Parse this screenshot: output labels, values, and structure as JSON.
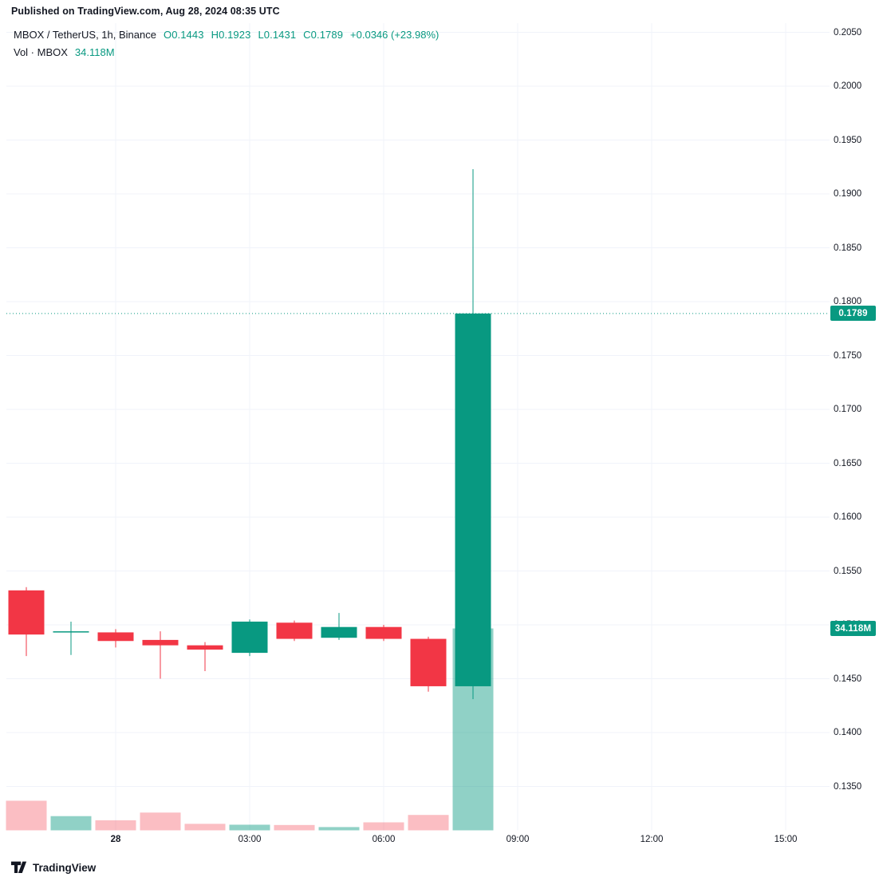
{
  "published_bar": {
    "text": "Published on TradingView.com, Aug 28, 2024 08:35 UTC"
  },
  "legend": {
    "symbol_title": "MBOX / TetherUS, 1h, Binance",
    "open_label": "O",
    "open_value": "0.1443",
    "high_label": "H",
    "high_value": "0.1923",
    "low_label": "L",
    "low_value": "0.1431",
    "close_label": "C",
    "close_value": "0.1789",
    "change_text": "+0.0346 (+23.98%)",
    "volume_label": "Vol · MBOX",
    "volume_value": "34.118M"
  },
  "price_axis": {
    "last_price_badge": "0.1789",
    "volume_badge": "34.118M"
  },
  "footer": {
    "brand": "TradingView"
  },
  "colors": {
    "up": "#089981",
    "down": "#f23645",
    "up_volume": "rgba(8,153,129,0.45)",
    "down_volume": "rgba(242,54,69,0.32)",
    "grid": "#f0f3fa",
    "axis_text": "#131722",
    "badge_text": "#ffffff"
  },
  "chart_data": {
    "type": "candlestick_with_volume",
    "title": "MBOX / TetherUS, 1h, Binance",
    "exchange": "Binance",
    "interval": "1h",
    "legend_position": "top-left",
    "grid": true,
    "y_axis": {
      "top": 0.205,
      "bottom": 0.135,
      "tick_step": 0.005
    },
    "y_ticks": [
      0.205,
      0.2,
      0.195,
      0.19,
      0.185,
      0.18,
      0.175,
      0.17,
      0.165,
      0.16,
      0.155,
      0.15,
      0.145,
      0.14,
      0.135
    ],
    "x_ticks": [
      {
        "label": "28",
        "slot": 2
      },
      {
        "label": "03:00",
        "slot": 5
      },
      {
        "label": "06:00",
        "slot": 8
      },
      {
        "label": "09:00",
        "slot": 11
      },
      {
        "label": "12:00",
        "slot": 14
      },
      {
        "label": "15:00",
        "slot": 17
      }
    ],
    "last_price": 0.1789,
    "volume_scale_max_m": 34.118,
    "candles": [
      {
        "t": "22:00",
        "o": 0.1532,
        "h": 0.1535,
        "l": 0.1471,
        "c": 0.1491,
        "v": 5.0
      },
      {
        "t": "23:00",
        "o": 0.1493,
        "h": 0.1503,
        "l": 0.1472,
        "c": 0.1494,
        "v": 2.4
      },
      {
        "t": "00:00",
        "o": 0.1493,
        "h": 0.1496,
        "l": 0.1479,
        "c": 0.1485,
        "v": 1.7
      },
      {
        "t": "01:00",
        "o": 0.1486,
        "h": 0.1494,
        "l": 0.145,
        "c": 0.1481,
        "v": 3.0
      },
      {
        "t": "02:00",
        "o": 0.1481,
        "h": 0.1484,
        "l": 0.1457,
        "c": 0.1477,
        "v": 1.1
      },
      {
        "t": "03:00",
        "o": 0.1474,
        "h": 0.1505,
        "l": 0.1471,
        "c": 0.1503,
        "v": 0.95
      },
      {
        "t": "04:00",
        "o": 0.1502,
        "h": 0.1504,
        "l": 0.1485,
        "c": 0.1487,
        "v": 0.9
      },
      {
        "t": "05:00",
        "o": 0.1488,
        "h": 0.1511,
        "l": 0.1486,
        "c": 0.1498,
        "v": 0.55
      },
      {
        "t": "06:00",
        "o": 0.1498,
        "h": 0.15,
        "l": 0.1485,
        "c": 0.1487,
        "v": 1.35
      },
      {
        "t": "07:00",
        "o": 0.1487,
        "h": 0.1489,
        "l": 0.1438,
        "c": 0.1443,
        "v": 2.6
      },
      {
        "t": "08:00",
        "o": 0.1443,
        "h": 0.1923,
        "l": 0.1431,
        "c": 0.1789,
        "v": 34.118
      }
    ]
  }
}
